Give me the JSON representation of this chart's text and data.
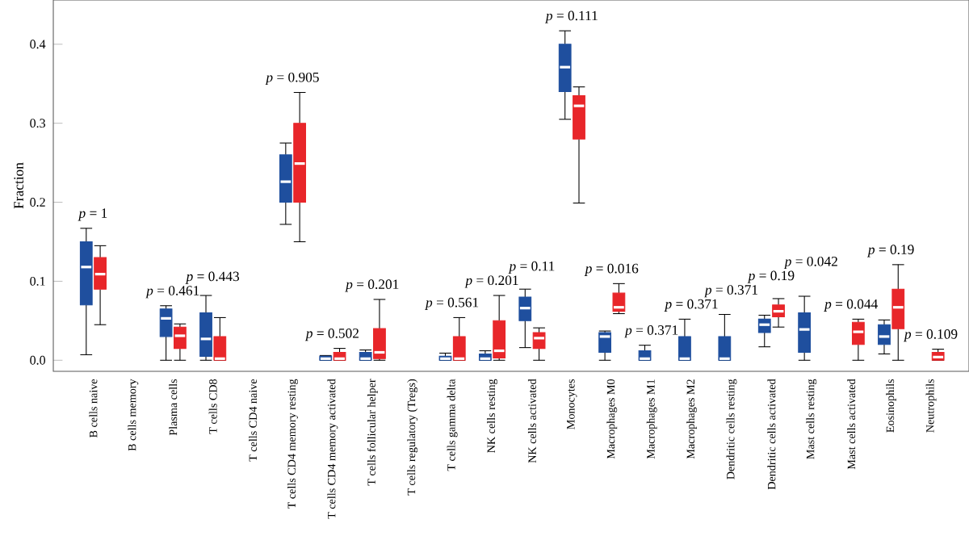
{
  "chart_data": {
    "type": "box",
    "ylabel": "Fraction",
    "ylim": [
      -0.014,
      0.456
    ],
    "yticks": [
      {
        "value": 0,
        "label": "0.0"
      },
      {
        "value": 0.1,
        "label": "0.1"
      },
      {
        "value": 0.2,
        "label": "0.2"
      },
      {
        "value": 0.3,
        "label": "0.3"
      },
      {
        "value": 0.4,
        "label": "0.4"
      }
    ],
    "categories": [
      "B cells naive",
      "B cells memory",
      "Plasma cells",
      "T cells CD8",
      "T cells CD4 naive",
      "T cells CD4 memory resting",
      "T cells CD4 memory activated",
      "T cells follicular helper",
      "T cells regulatory (Tregs)",
      "T cells gamma delta",
      "NK cells resting",
      "NK cells activated",
      "Monocytes",
      "Macrophages M0",
      "Macrophages M1",
      "Macrophages M2",
      "Dendritic cells resting",
      "Dendritic cells activated",
      "Mast cells resting",
      "Mast cells activated",
      "Eosinophils",
      "Neutrophils"
    ],
    "series": [
      {
        "color": "#1f4f9e",
        "boxes": [
          {
            "low": 0.007,
            "q1": 0.07,
            "median": 0.118,
            "q3": 0.15,
            "high": 0.167
          },
          null,
          {
            "low": 0,
            "q1": 0.03,
            "median": 0.053,
            "q3": 0.065,
            "high": 0.069
          },
          {
            "low": 0,
            "q1": 0.005,
            "median": 0.027,
            "q3": 0.06,
            "high": 0.082
          },
          null,
          {
            "low": 0.172,
            "q1": 0.2,
            "median": 0.226,
            "q3": 0.26,
            "high": 0.275
          },
          {
            "low": 0,
            "q1": 0,
            "median": 0.002,
            "q3": 0.005,
            "high": 0.006
          },
          {
            "low": 0,
            "q1": 0,
            "median": 0.002,
            "q3": 0.01,
            "high": 0.013
          },
          null,
          {
            "low": 0,
            "q1": 0,
            "median": 0.002,
            "q3": 0.005,
            "high": 0.009
          },
          {
            "low": 0,
            "q1": 0,
            "median": 0.002,
            "q3": 0.008,
            "high": 0.012
          },
          {
            "low": 0.016,
            "q1": 0.05,
            "median": 0.066,
            "q3": 0.08,
            "high": 0.09
          },
          {
            "low": 0.305,
            "q1": 0.34,
            "median": 0.371,
            "q3": 0.4,
            "high": 0.417
          },
          {
            "low": 0,
            "q1": 0.01,
            "median": 0.03,
            "q3": 0.035,
            "high": 0.037
          },
          {
            "low": 0,
            "q1": 0,
            "median": 0.002,
            "q3": 0.012,
            "high": 0.019
          },
          {
            "low": 0,
            "q1": 0,
            "median": 0.002,
            "q3": 0.03,
            "high": 0.052
          },
          {
            "low": 0,
            "q1": 0,
            "median": 0.002,
            "q3": 0.03,
            "high": 0.058
          },
          {
            "low": 0.017,
            "q1": 0.035,
            "median": 0.045,
            "q3": 0.052,
            "high": 0.057
          },
          {
            "low": 0,
            "q1": 0.01,
            "median": 0.039,
            "q3": 0.06,
            "high": 0.081
          },
          null,
          {
            "low": 0.008,
            "q1": 0.02,
            "median": 0.03,
            "q3": 0.045,
            "high": 0.051
          },
          null
        ]
      },
      {
        "color": "#e8262a",
        "boxes": [
          {
            "low": 0.045,
            "q1": 0.09,
            "median": 0.109,
            "q3": 0.13,
            "high": 0.145
          },
          null,
          {
            "low": 0,
            "q1": 0.015,
            "median": 0.031,
            "q3": 0.042,
            "high": 0.046
          },
          {
            "low": 0,
            "q1": 0,
            "median": 0.002,
            "q3": 0.03,
            "high": 0.054
          },
          null,
          {
            "low": 0.15,
            "q1": 0.2,
            "median": 0.249,
            "q3": 0.3,
            "high": 0.339
          },
          {
            "low": 0,
            "q1": 0,
            "median": 0.002,
            "q3": 0.01,
            "high": 0.015
          },
          {
            "low": 0,
            "q1": 0.002,
            "median": 0.01,
            "q3": 0.04,
            "high": 0.077
          },
          null,
          {
            "low": 0,
            "q1": 0,
            "median": 0.002,
            "q3": 0.03,
            "high": 0.054
          },
          {
            "low": 0,
            "q1": 0.003,
            "median": 0.012,
            "q3": 0.05,
            "high": 0.082
          },
          {
            "low": 0,
            "q1": 0.015,
            "median": 0.028,
            "q3": 0.035,
            "high": 0.041
          },
          {
            "low": 0.199,
            "q1": 0.28,
            "median": 0.322,
            "q3": 0.335,
            "high": 0.346
          },
          {
            "low": 0.059,
            "q1": 0.062,
            "median": 0.067,
            "q3": 0.085,
            "high": 0.097
          },
          null,
          null,
          null,
          {
            "low": 0.042,
            "q1": 0.055,
            "median": 0.062,
            "q3": 0.07,
            "high": 0.078
          },
          null,
          {
            "low": 0,
            "q1": 0.02,
            "median": 0.036,
            "q3": 0.048,
            "high": 0.052
          },
          {
            "low": 0,
            "q1": 0.04,
            "median": 0.067,
            "q3": 0.09,
            "high": 0.121
          },
          {
            "low": 0,
            "q1": 0,
            "median": 0.004,
            "q3": 0.01,
            "high": 0.014
          }
        ]
      }
    ],
    "annotations": [
      "*p* = 1",
      "*p* = 0.461",
      "*p* = 0.443",
      "*p* = 0.905",
      "*p* = 0.502",
      "*p* = 0.201",
      "*p* = 0.561",
      "*p* = 0.201",
      "*p* = 0.11",
      "*p* = 0.111",
      "*p* = 0.016",
      "*p* = 0.371",
      "*p* = 0.371",
      "*p* = 0.371",
      "*p* = 0.19",
      "*p* = 0.042",
      "*p* = 0.044",
      "*p* = 0.19",
      "*p* = 0.109"
    ]
  }
}
